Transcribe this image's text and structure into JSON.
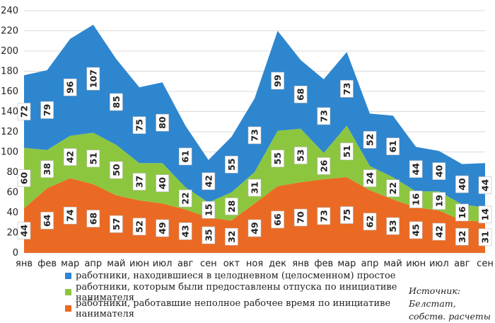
{
  "chart_data": {
    "type": "area",
    "stacked": true,
    "categories": [
      "янв",
      "фев",
      "мар",
      "апр",
      "май",
      "июн",
      "июл",
      "авг",
      "сен",
      "окт",
      "ноя",
      "дек",
      "янв",
      "фев",
      "мар",
      "апр",
      "май",
      "июн",
      "июл",
      "авг",
      "сен"
    ],
    "series": [
      {
        "name": "работники, работавшие неполное рабочее время по инициативе нанимателя",
        "color": "#ea6a23",
        "values": [
          44,
          64,
          74,
          68,
          57,
          52,
          49,
          43,
          35,
          32,
          49,
          66,
          70,
          73,
          75,
          62,
          53,
          45,
          42,
          32,
          31
        ]
      },
      {
        "name": "работники, которым были предоставлены отпуска по инициативе нанимателя",
        "color": "#8cc63f",
        "values": [
          60,
          38,
          42,
          51,
          50,
          37,
          40,
          22,
          15,
          28,
          31,
          55,
          53,
          26,
          51,
          24,
          22,
          16,
          19,
          16,
          14
        ]
      },
      {
        "name": "работники, находившиеся в целодневном (целосменном) простое",
        "color": "#2e86cf",
        "values": [
          72,
          79,
          96,
          107,
          85,
          75,
          80,
          61,
          42,
          55,
          73,
          99,
          68,
          73,
          73,
          52,
          61,
          44,
          40,
          40,
          44
        ]
      }
    ],
    "ylim": [
      0,
      240
    ],
    "yticks": [
      0,
      20,
      40,
      60,
      80,
      100,
      120,
      140,
      160,
      180,
      200,
      220,
      240
    ],
    "grid": true,
    "legend": "bottom"
  },
  "source": {
    "line1": "Источник: Белстат,",
    "line2": "собств. расчеты"
  }
}
